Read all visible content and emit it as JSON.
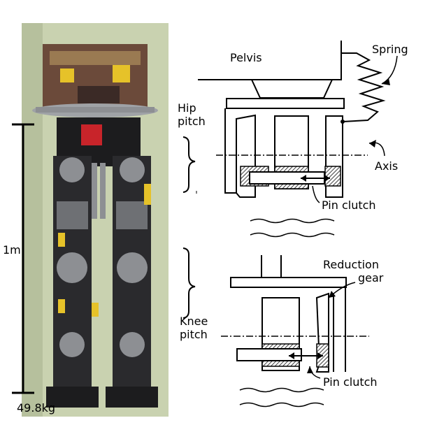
{
  "labels": {
    "pelvis": "Pelvis",
    "spring": "Spring",
    "hip_line1": "Hip",
    "hip_line2": "pitch",
    "axis": "Axis",
    "pin_clutch_top": "Pin clutch",
    "reduction_line1": "Reduction",
    "reduction_line2": "gear",
    "knee_line1": "Knee",
    "knee_line2": "pitch",
    "pin_clutch_bottom": "Pin clutch",
    "height": "1m",
    "weight": "49.8kg"
  },
  "colors": {
    "photo_background": "#c9d2b0",
    "robot_dark": "#1c1c1e",
    "robot_metal": "#8d8f93",
    "accent_red": "#c8242a",
    "accent_yellow": "#e6c229"
  }
}
